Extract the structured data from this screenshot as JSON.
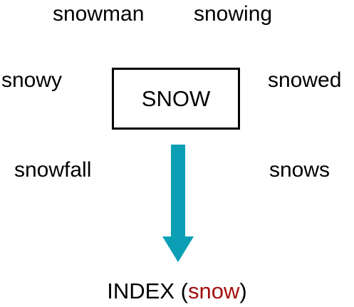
{
  "colors": {
    "arrow": "#0b9fb5",
    "highlight": "#a50f0f",
    "text": "#000000",
    "box_border": "#000000"
  },
  "words": {
    "snowman": "snowman",
    "snowing": "snowing",
    "snowy": "snowy",
    "snowed": "snowed",
    "snowfall": "snowfall",
    "snows": "snows"
  },
  "center": {
    "label": "SNOW"
  },
  "index": {
    "prefix": "INDEX",
    "open_paren": "(",
    "term": "snow",
    "close_paren": ")"
  }
}
